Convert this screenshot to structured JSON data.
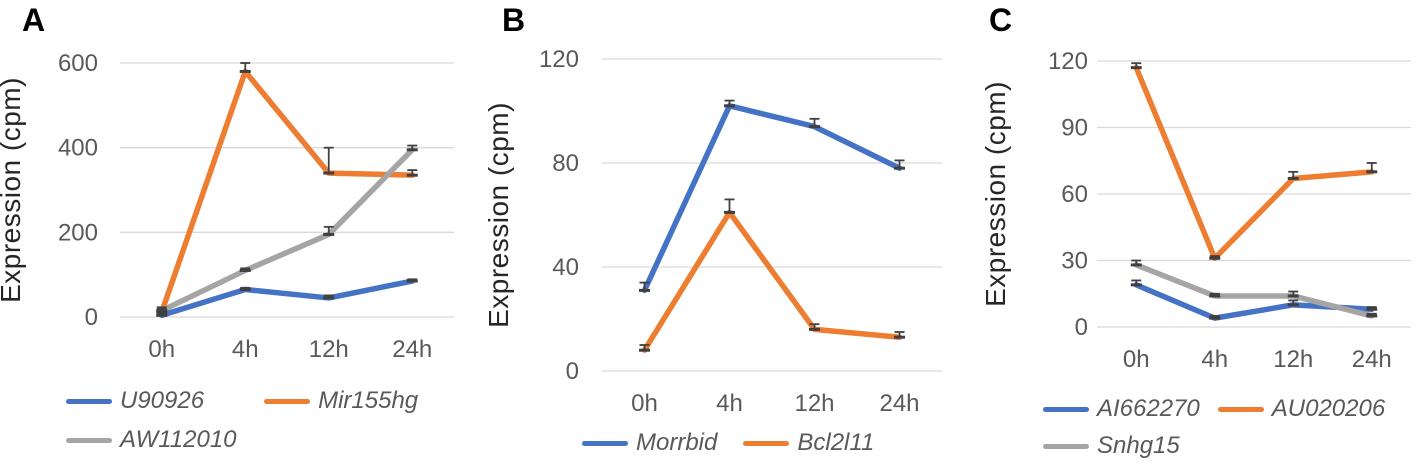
{
  "figure": {
    "panel_labels": [
      "A",
      "B",
      "C"
    ],
    "accent_colors": {
      "blue": "#4472C4",
      "orange": "#ED7D31",
      "gray": "#A5A5A5"
    }
  },
  "chart_data": [
    {
      "type": "line",
      "panel_label": "A",
      "title": "",
      "xlabel": "",
      "ylabel": "Expression (cpm)",
      "ylim": [
        0,
        600
      ],
      "yticks": [
        0,
        200,
        400,
        600
      ],
      "categories": [
        "0h",
        "4h",
        "12h",
        "24h"
      ],
      "grid": "horizontal",
      "legend_position": "bottom",
      "error_bars": "upward",
      "series": [
        {
          "name": "U90926",
          "color": "#4472C4",
          "values": [
            4,
            65,
            45,
            85
          ],
          "errors": [
            4,
            4,
            6,
            4
          ]
        },
        {
          "name": "Mir155hg",
          "color": "#ED7D31",
          "values": [
            12,
            580,
            340,
            335
          ],
          "errors": [
            8,
            20,
            60,
            12
          ]
        },
        {
          "name": "AW112010",
          "color": "#A5A5A5",
          "values": [
            15,
            110,
            195,
            395
          ],
          "errors": [
            8,
            5,
            18,
            10
          ]
        }
      ],
      "legend_rows": [
        [
          "U90926",
          "Mir155hg"
        ],
        [
          "AW112010"
        ]
      ]
    },
    {
      "type": "line",
      "panel_label": "B",
      "title": "",
      "xlabel": "",
      "ylabel": "Expression (cpm)",
      "ylim": [
        0,
        120
      ],
      "yticks": [
        0,
        40,
        80,
        120
      ],
      "categories": [
        "0h",
        "4h",
        "12h",
        "24h"
      ],
      "grid": "horizontal",
      "legend_position": "bottom",
      "error_bars": "upward",
      "series": [
        {
          "name": "Morrbid",
          "color": "#4472C4",
          "values": [
            31,
            102,
            94,
            78
          ],
          "errors": [
            3,
            2,
            3,
            3
          ]
        },
        {
          "name": "Bcl2l11",
          "color": "#ED7D31",
          "values": [
            8,
            61,
            16,
            13
          ],
          "errors": [
            2,
            5,
            2,
            2
          ]
        }
      ],
      "legend_rows": [
        [
          "Morrbid",
          "Bcl2l11"
        ]
      ]
    },
    {
      "type": "line",
      "panel_label": "C",
      "title": "",
      "xlabel": "",
      "ylabel": "Expression (cpm)",
      "ylim": [
        0,
        120
      ],
      "yticks": [
        0,
        30,
        60,
        90,
        120
      ],
      "categories": [
        "0h",
        "4h",
        "12h",
        "24h"
      ],
      "grid": "horizontal",
      "legend_position": "bottom",
      "error_bars": "upward",
      "series": [
        {
          "name": "AI662270",
          "color": "#4472C4",
          "values": [
            19,
            4,
            10,
            8
          ],
          "errors": [
            2,
            1,
            2,
            1
          ]
        },
        {
          "name": "AU020206",
          "color": "#ED7D31",
          "values": [
            117,
            31,
            67,
            70
          ],
          "errors": [
            2,
            1,
            3,
            4
          ]
        },
        {
          "name": "Snhg15",
          "color": "#A5A5A5",
          "values": [
            28,
            14,
            14,
            5
          ],
          "errors": [
            2,
            1,
            2,
            1
          ]
        }
      ],
      "legend_rows": [
        [
          "AI662270",
          "AU020206"
        ],
        [
          "Snhg15"
        ]
      ]
    }
  ]
}
